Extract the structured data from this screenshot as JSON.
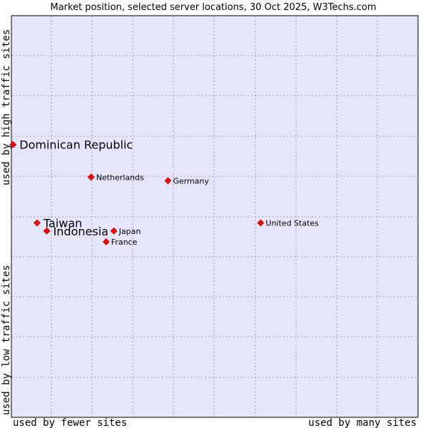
{
  "chart_data": {
    "type": "scatter",
    "title": "Market position, selected server locations, 30 Oct 2025, W3Techs.com",
    "xlabel_left": "used by fewer sites",
    "xlabel_right": "used by many sites",
    "ylabel_low": "used by low traffic sites",
    "ylabel_high": "used by high traffic sites",
    "xlim": [
      0,
      100
    ],
    "ylim": [
      0,
      100
    ],
    "grid": true,
    "marker_color": "#ff0000",
    "plot_background": "#e6e6fa",
    "grid_color": "#9a9ab8",
    "points": [
      {
        "name": "Dominican Republic",
        "x": 0.4,
        "y": 67.9,
        "size": "large"
      },
      {
        "name": "Netherlands",
        "x": 19.6,
        "y": 59.8,
        "size": "small"
      },
      {
        "name": "Germany",
        "x": 38.5,
        "y": 58.9,
        "size": "small"
      },
      {
        "name": "Taiwan",
        "x": 6.3,
        "y": 48.4,
        "size": "large"
      },
      {
        "name": "Indonesia",
        "x": 8.7,
        "y": 46.4,
        "size": "large"
      },
      {
        "name": "Japan",
        "x": 25.2,
        "y": 46.4,
        "size": "small"
      },
      {
        "name": "France",
        "x": 23.3,
        "y": 43.7,
        "size": "small"
      },
      {
        "name": "United States",
        "x": 61.3,
        "y": 48.4,
        "size": "small"
      }
    ]
  }
}
